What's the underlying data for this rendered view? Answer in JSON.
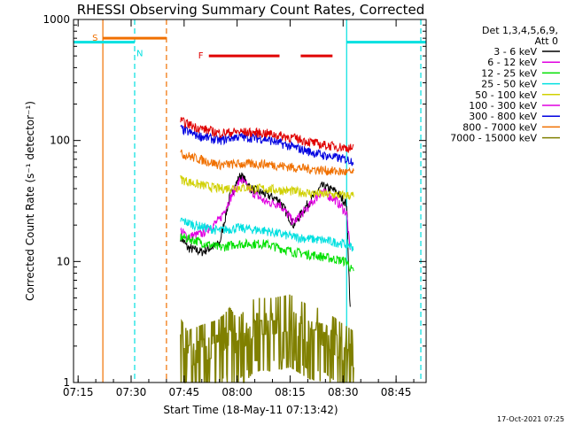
{
  "chart_data": {
    "type": "line",
    "title": "RHESSI Observing Summary Count Rates, Corrected",
    "xlabel": "Start Time (18-May-11 07:13:42)",
    "ylabel": "Corrected Count Rate (s⁻¹ detector⁻¹)",
    "y_scale": "log",
    "ylim": [
      1,
      1000
    ],
    "xlim": [
      "07:13:42",
      "08:53:30"
    ],
    "x_ticks": [
      "07:15",
      "07:30",
      "07:45",
      "08:00",
      "08:15",
      "08:30",
      "08:45"
    ],
    "y_ticks": [
      "1",
      "10",
      "100",
      "1000"
    ],
    "legend_header": [
      "Det 1,3,4,5,6,9,",
      "Att 0"
    ],
    "legend_position": "right",
    "timestamp": "17-Oct-2021 07:25",
    "series": [
      {
        "name": "3 - 6 keV",
        "color": "#000000",
        "x": [
          "07:44",
          "07:46",
          "07:50",
          "07:55",
          "07:58",
          "08:01",
          "08:04",
          "08:08",
          "08:12",
          "08:16",
          "08:20",
          "08:24",
          "08:28",
          "08:31",
          "08:32"
        ],
        "values": [
          16,
          13,
          12,
          14,
          35,
          52,
          40,
          36,
          32,
          20,
          30,
          42,
          38,
          30,
          4
        ]
      },
      {
        "name": "6 - 12 keV",
        "color": "#e000e0",
        "x": [
          "07:44",
          "07:46",
          "07:50",
          "07:55",
          "07:58",
          "08:01",
          "08:04",
          "08:08",
          "08:12",
          "08:16",
          "08:20",
          "08:24",
          "08:28",
          "08:31",
          "08:32"
        ],
        "values": [
          18,
          16,
          17,
          22,
          33,
          48,
          38,
          31,
          30,
          21,
          28,
          38,
          32,
          25,
          12
        ]
      },
      {
        "name": "12 - 25 keV",
        "color": "#00e000",
        "x": [
          "07:44",
          "07:48",
          "07:55",
          "08:00",
          "08:08",
          "08:16",
          "08:24",
          "08:31",
          "08:33"
        ],
        "values": [
          16,
          15,
          13,
          14,
          14,
          12,
          11,
          10,
          8
        ]
      },
      {
        "name": "25 - 50 keV",
        "color": "#00e0e0",
        "x": [
          "07:44",
          "07:48",
          "07:55",
          "08:00",
          "08:08",
          "08:16",
          "08:24",
          "08:31",
          "08:33"
        ],
        "values": [
          22,
          20,
          18,
          19,
          18,
          16,
          15,
          14,
          13
        ]
      },
      {
        "name": "50 - 100 keV",
        "color": "#d0d000",
        "x": [
          "07:44",
          "07:48",
          "07:55",
          "08:00",
          "08:08",
          "08:16",
          "08:24",
          "08:33"
        ],
        "values": [
          48,
          44,
          40,
          41,
          40,
          38,
          36,
          35
        ]
      },
      {
        "name": "100 - 300 keV",
        "color": "#e000e0",
        "x": [],
        "values": []
      },
      {
        "name": "300 - 800 keV",
        "color": "#0000e0",
        "x": [
          "07:44",
          "07:48",
          "07:55",
          "08:00",
          "08:08",
          "08:16",
          "08:24",
          "08:33"
        ],
        "values": [
          125,
          112,
          100,
          108,
          103,
          88,
          76,
          68
        ]
      },
      {
        "name": "800 - 7000 keV",
        "color": "#f07000",
        "x": [
          "07:44",
          "07:48",
          "07:55",
          "08:00",
          "08:08",
          "08:16",
          "08:24",
          "08:33"
        ],
        "values": [
          78,
          72,
          63,
          64,
          64,
          60,
          57,
          54
        ]
      },
      {
        "name": "7000 - 15000 keV",
        "color": "#808000",
        "x": [
          "07:44",
          "07:46",
          "07:50",
          "07:55",
          "07:58",
          "08:00",
          "08:05",
          "08:10",
          "08:15",
          "08:20",
          "08:25",
          "08:28",
          "08:33"
        ],
        "values": [
          2,
          1.6,
          1.8,
          2,
          2.5,
          2,
          3,
          3,
          3.2,
          2.6,
          2.4,
          2,
          1.6
        ]
      },
      {
        "name": "",
        "color": "#e00000",
        "x": [
          "07:44",
          "07:48",
          "07:55",
          "08:00",
          "08:08",
          "08:16",
          "08:24",
          "08:33"
        ],
        "values": [
          145,
          130,
          115,
          118,
          115,
          105,
          92,
          86
        ]
      }
    ],
    "annotations": [
      {
        "label": "S",
        "color": "#f07000",
        "start": "07:22",
        "end": "07:40",
        "y": 700
      },
      {
        "label": "N",
        "color": "#00e0e0",
        "start": "07:13:42",
        "end": "07:31",
        "y": 650
      },
      {
        "label": "",
        "color": "#00e0e0",
        "start": "08:31",
        "end": "08:53:30",
        "y": 650
      },
      {
        "label": "F",
        "color": "#e00000",
        "start": "07:52",
        "end": "08:12",
        "y": 500
      },
      {
        "label": "",
        "color": "#e00000",
        "start": "08:18",
        "end": "08:27",
        "y": 500
      }
    ],
    "vertical_markers": [
      {
        "x": "07:22",
        "color": "#f07000",
        "style": "solid"
      },
      {
        "x": "07:40",
        "color": "#f07000",
        "style": "dashed"
      },
      {
        "x": "07:31",
        "color": "#00e0e0",
        "style": "dashed"
      },
      {
        "x": "08:31",
        "color": "#00e0e0",
        "style": "solid"
      },
      {
        "x": "08:52",
        "color": "#00e0e0",
        "style": "dashed"
      }
    ]
  }
}
